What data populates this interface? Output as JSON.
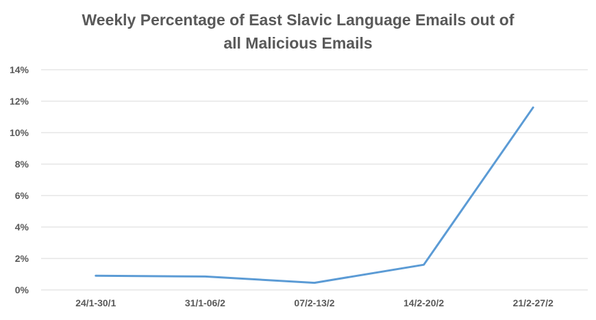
{
  "chart_data": {
    "type": "line",
    "title_lines": [
      "Weekly Percentage of East Slavic Language Emails out of",
      "all Malicious Emails"
    ],
    "xlabel": "",
    "ylabel": "",
    "categories": [
      "24/1-30/1",
      "31/1-06/2",
      "07/2-13/2",
      "14/2-20/2",
      "21/2-27/2"
    ],
    "series": [
      {
        "values": [
          0.9,
          0.85,
          0.45,
          1.6,
          11.6
        ],
        "color": "#5B9BD5"
      }
    ],
    "y_ticks": [
      0,
      2,
      4,
      6,
      8,
      10,
      12,
      14
    ],
    "y_tick_labels": [
      "0%",
      "2%",
      "4%",
      "6%",
      "8%",
      "10%",
      "12%",
      "14%"
    ],
    "ylim": [
      0,
      14
    ],
    "grid": true,
    "grid_color": "#D9D9D9",
    "legend": "none"
  }
}
